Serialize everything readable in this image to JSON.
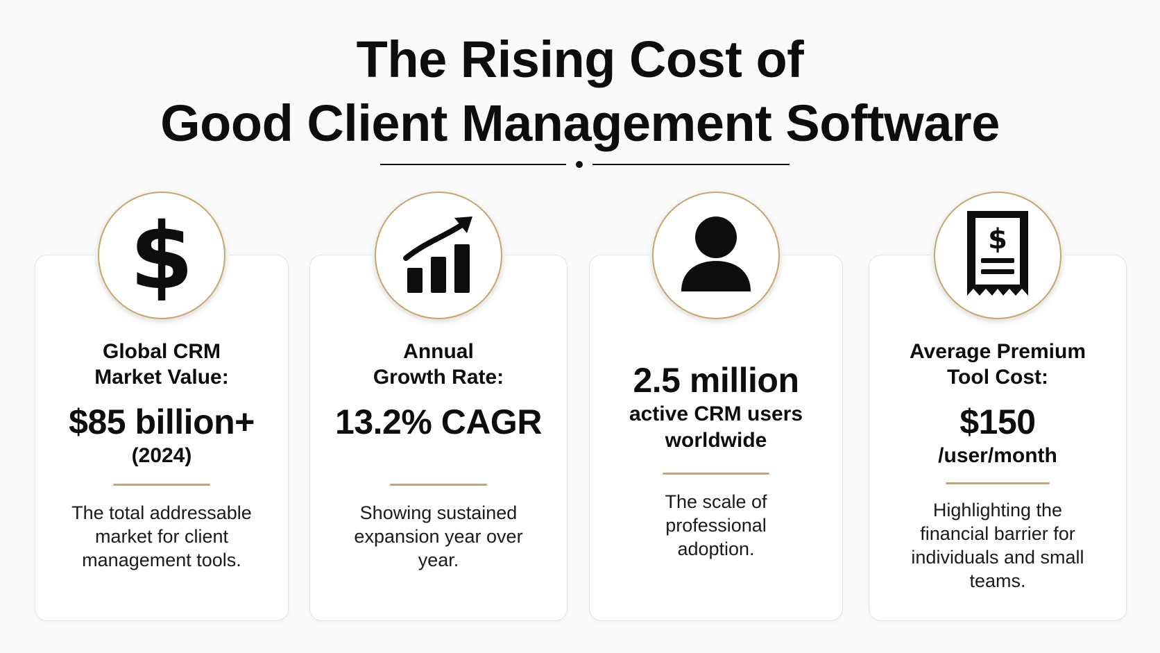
{
  "title": {
    "line1": "The Rising Cost of",
    "line2": "Good Client Management Software"
  },
  "accent_color": "#c9a567",
  "cards": [
    {
      "icon": "dollar-sign-icon",
      "label_line1": "Global CRM",
      "label_line2": "Market Value:",
      "value": "$85 billion+",
      "value_sub": "(2024)",
      "description": "The total addressable market for client management tools."
    },
    {
      "icon": "growth-chart-icon",
      "label_line1": "Annual",
      "label_line2": "Growth Rate:",
      "value": "13.2% CAGR",
      "description": "Showing sustained expansion year over year."
    },
    {
      "icon": "user-icon",
      "value": "2.5 million",
      "value_sub": "active CRM users worldwide",
      "description": "The scale of professional adoption."
    },
    {
      "icon": "receipt-icon",
      "label_line1": "Average Premium",
      "label_line2": "Tool Cost:",
      "value": "$150",
      "value_sub": "/user/month",
      "description": "Highlighting the financial barrier for individuals and small teams."
    }
  ]
}
